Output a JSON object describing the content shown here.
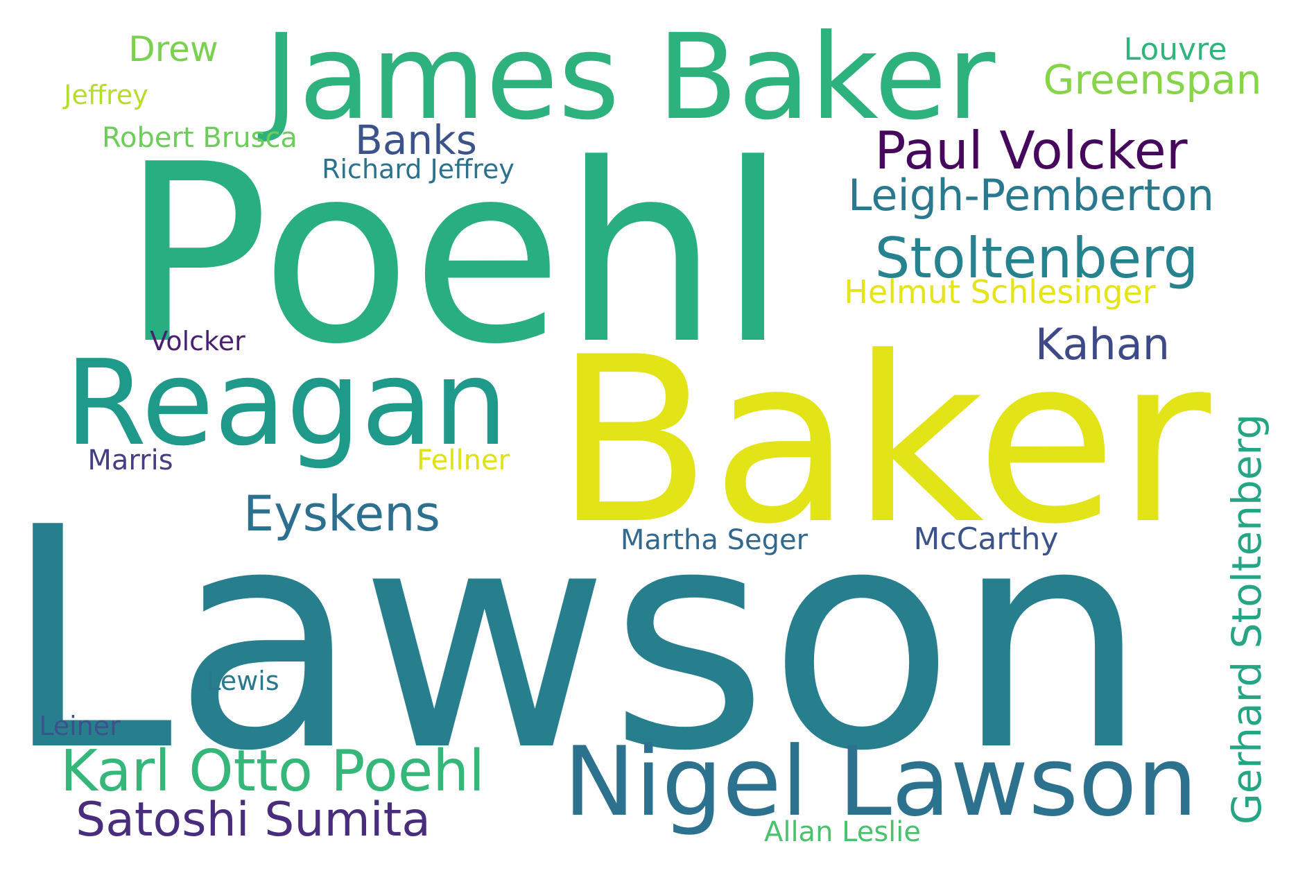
{
  "words": [
    {
      "text": "Lawson",
      "color": "#277f8e"
    },
    {
      "text": "Poehl",
      "color": "#28ae80"
    },
    {
      "text": "Baker",
      "color": "#e2e418"
    },
    {
      "text": "James Baker",
      "color": "#2db27d"
    },
    {
      "text": "Reagan",
      "color": "#1f9a8a"
    },
    {
      "text": "Nigel Lawson",
      "color": "#2c728e"
    },
    {
      "text": "Karl Otto Poehl",
      "color": "#35b779"
    },
    {
      "text": "Satoshi Sumita",
      "color": "#472d7b"
    },
    {
      "text": "Paul Volcker",
      "color": "#46085c"
    },
    {
      "text": "Leigh-Pemberton",
      "color": "#2a788e"
    },
    {
      "text": "Stoltenberg",
      "color": "#26828e"
    },
    {
      "text": "Gerhard Stoltenberg",
      "color": "#25a584"
    },
    {
      "text": "Eyskens",
      "color": "#2d6f8e"
    },
    {
      "text": "Kahan",
      "color": "#3e4989"
    },
    {
      "text": "Greenspan",
      "color": "#86d549"
    },
    {
      "text": "Helmut Schlesinger",
      "color": "#e5e419"
    },
    {
      "text": "Banks",
      "color": "#3b528b"
    },
    {
      "text": "Drew",
      "color": "#7ad151"
    },
    {
      "text": "Louvre",
      "color": "#2fb47c"
    },
    {
      "text": "Robert Brusca",
      "color": "#6ccd5a"
    },
    {
      "text": "Richard Jeffrey",
      "color": "#2c728e"
    },
    {
      "text": "Jeffrey",
      "color": "#b5de2b"
    },
    {
      "text": "Volcker",
      "color": "#482173"
    },
    {
      "text": "Marris",
      "color": "#433e85"
    },
    {
      "text": "Fellner",
      "color": "#dde318"
    },
    {
      "text": "Martha Seger",
      "color": "#31688e"
    },
    {
      "text": "McCarthy",
      "color": "#3b528b"
    },
    {
      "text": "Lewis",
      "color": "#2a788e"
    },
    {
      "text": "Leiner",
      "color": "#3b528b"
    },
    {
      "text": "Allan Leslie",
      "color": "#4ac16d"
    }
  ]
}
